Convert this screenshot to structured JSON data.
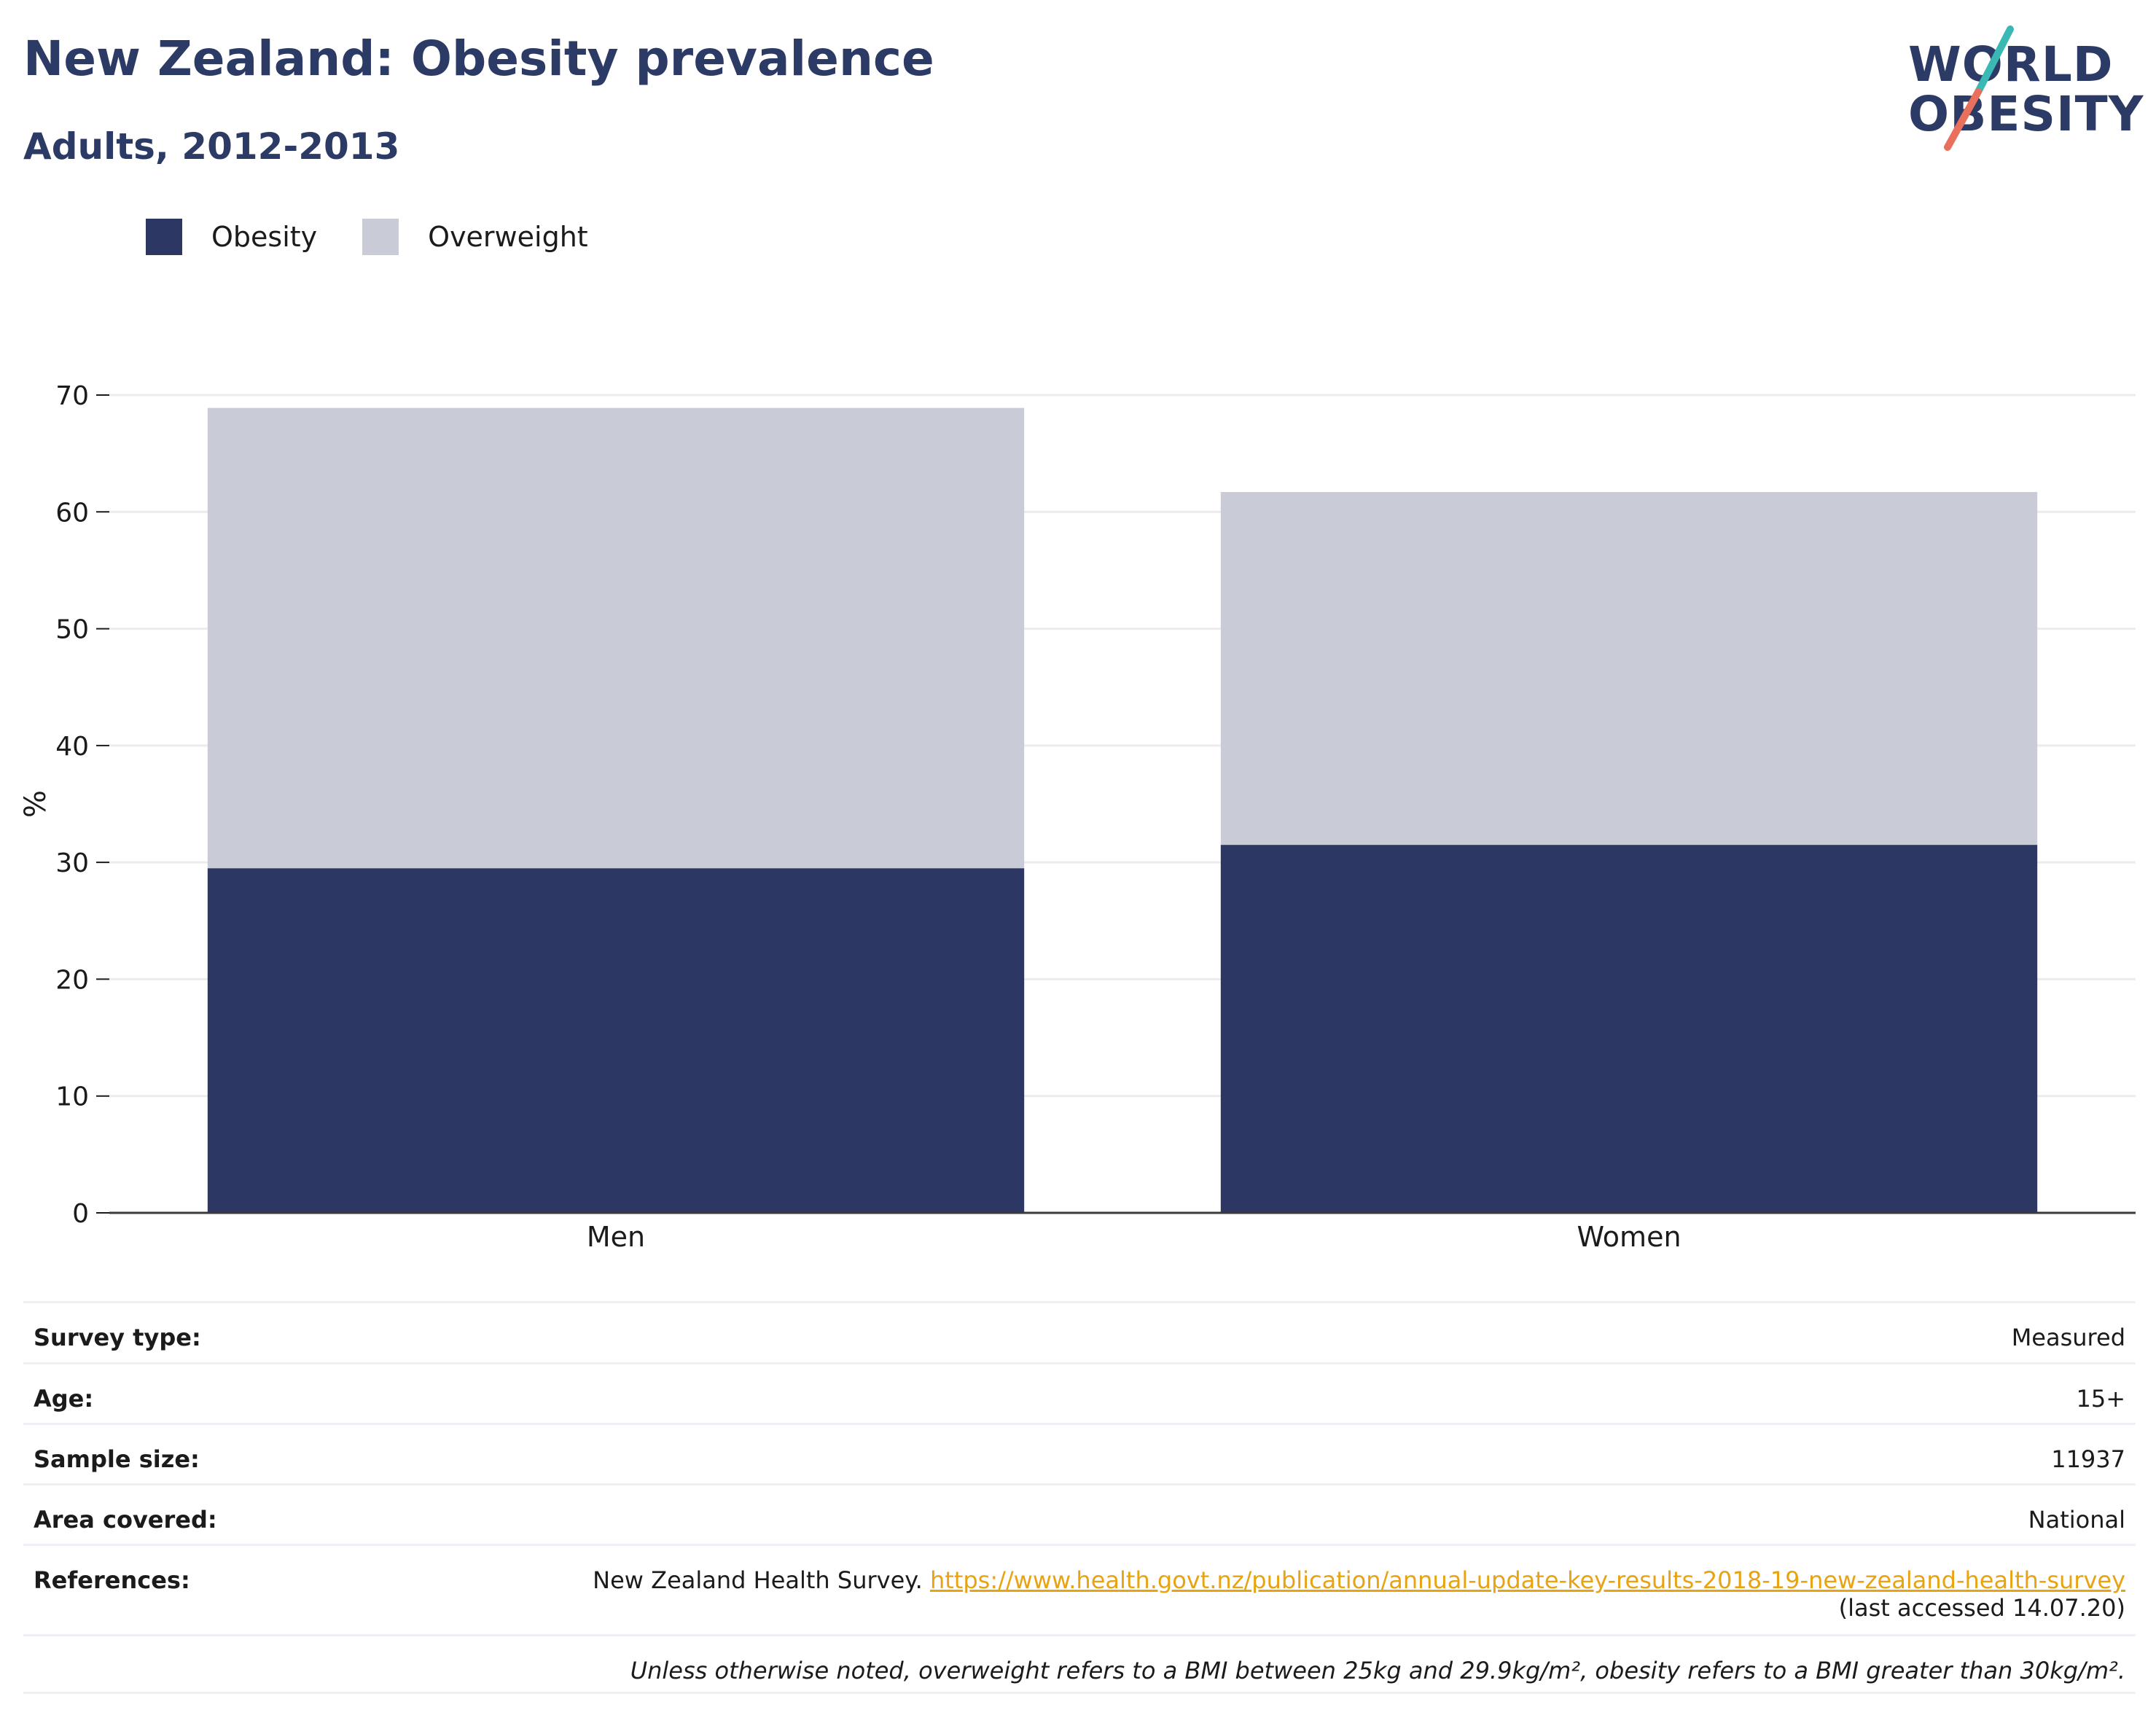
{
  "header": {
    "title": "New Zealand: Obesity prevalence",
    "subtitle": "Adults, 2012-2013"
  },
  "logo": {
    "line1": "WORLD",
    "line2": "OBESITY",
    "text_color": "#2c3a66",
    "slash_top_color": "#3ab8b3",
    "slash_bottom_color": "#e8705d"
  },
  "legend": [
    {
      "label": "Obesity",
      "color": "#2c3764"
    },
    {
      "label": "Overweight",
      "color": "#c9ccd7"
    }
  ],
  "chart_data": {
    "type": "bar",
    "stacked": true,
    "categories": [
      "Men",
      "Women"
    ],
    "series": [
      {
        "name": "Obesity",
        "values": [
          29.5,
          31.5
        ],
        "color": "#2c3764"
      },
      {
        "name": "Overweight",
        "values": [
          39.4,
          30.2
        ],
        "color": "#c9ccd7"
      }
    ],
    "ylabel": "%",
    "ylim": [
      0,
      70
    ],
    "yticks": [
      0,
      10,
      20,
      30,
      40,
      50,
      60,
      70
    ],
    "grid": true,
    "legend_position": "top-left"
  },
  "info": {
    "survey_type_label": "Survey type:",
    "survey_type_value": "Measured",
    "age_label": "Age:",
    "age_value": "15+",
    "sample_size_label": "Sample size:",
    "sample_size_value": "11937",
    "area_label": "Area covered:",
    "area_value": "National",
    "references_label": "References:",
    "references_text": "New Zealand Health Survey.",
    "references_link": "https://www.health.govt.nz/publication/annual-update-key-results-2018-19-new-zealand-health-survey",
    "references_accessed": "(last accessed 14.07.20)",
    "note": "Unless otherwise noted, overweight refers to a BMI between 25kg and 29.9kg/m², obesity refers to a BMI greater than 30kg/m²."
  }
}
